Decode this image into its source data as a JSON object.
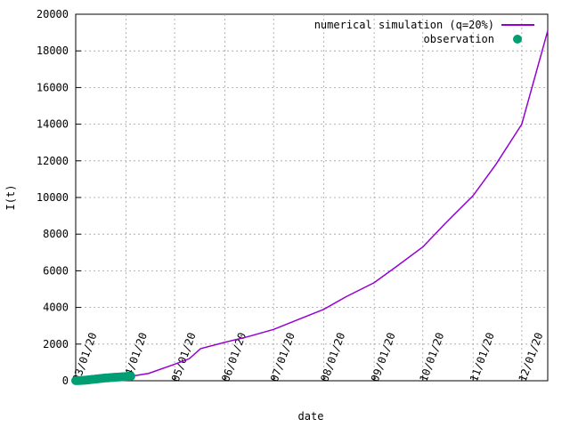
{
  "chart_data": {
    "type": "line",
    "x_label": "date",
    "y_label": "I(t)",
    "xlim": [
      "03/01/20",
      "12/17/20"
    ],
    "xticks": [
      "03/01/20",
      "04/01/20",
      "05/01/20",
      "06/01/20",
      "07/01/20",
      "08/01/20",
      "09/01/20",
      "10/01/20",
      "11/01/20",
      "12/01/20"
    ],
    "ylim": [
      0,
      20000
    ],
    "yticks": [
      0,
      2000,
      4000,
      6000,
      8000,
      10000,
      12000,
      14000,
      16000,
      18000,
      20000
    ],
    "grid": true,
    "legend": "top-right",
    "series": [
      {
        "name": "numerical simulation (q=20%)",
        "color": "#9400d3",
        "style": "line",
        "x": [
          "03/01/20",
          "03/15/20",
          "04/01/20",
          "04/15/20",
          "05/01/20",
          "05/10/20",
          "05/17/20",
          "06/01/20",
          "06/15/20",
          "07/01/20",
          "07/15/20",
          "08/01/20",
          "08/15/20",
          "09/01/20",
          "09/15/20",
          "10/01/20",
          "10/15/20",
          "11/01/20",
          "11/15/20",
          "12/01/20",
          "12/17/20"
        ],
        "values": [
          0,
          80,
          200,
          400,
          900,
          1200,
          1750,
          2100,
          2400,
          2800,
          3300,
          3900,
          4600,
          5350,
          6250,
          7300,
          8600,
          10100,
          11800,
          14000,
          19100
        ]
      },
      {
        "name": "observation",
        "color": "#009e73",
        "style": "points",
        "x": [
          "03/01/20",
          "03/02/20",
          "03/03/20",
          "03/04/20",
          "03/05/20",
          "03/06/20",
          "03/07/20",
          "03/08/20",
          "03/09/20",
          "03/10/20",
          "03/11/20",
          "03/12/20",
          "03/13/20",
          "03/14/20",
          "03/15/20",
          "03/16/20",
          "03/17/20",
          "03/18/20",
          "03/19/20",
          "03/20/20",
          "03/21/20",
          "03/22/20",
          "03/23/20",
          "03/24/20",
          "03/25/20",
          "03/26/20",
          "03/27/20",
          "03/28/20",
          "03/29/20",
          "03/30/20",
          "03/31/20",
          "04/01/20",
          "04/02/20",
          "04/03/20",
          "04/04/20"
        ],
        "values": [
          5,
          8,
          10,
          15,
          20,
          25,
          30,
          40,
          50,
          60,
          70,
          80,
          90,
          100,
          110,
          120,
          130,
          140,
          150,
          155,
          160,
          170,
          175,
          180,
          190,
          195,
          200,
          205,
          210,
          220,
          225,
          230,
          240,
          245,
          250
        ]
      }
    ]
  }
}
